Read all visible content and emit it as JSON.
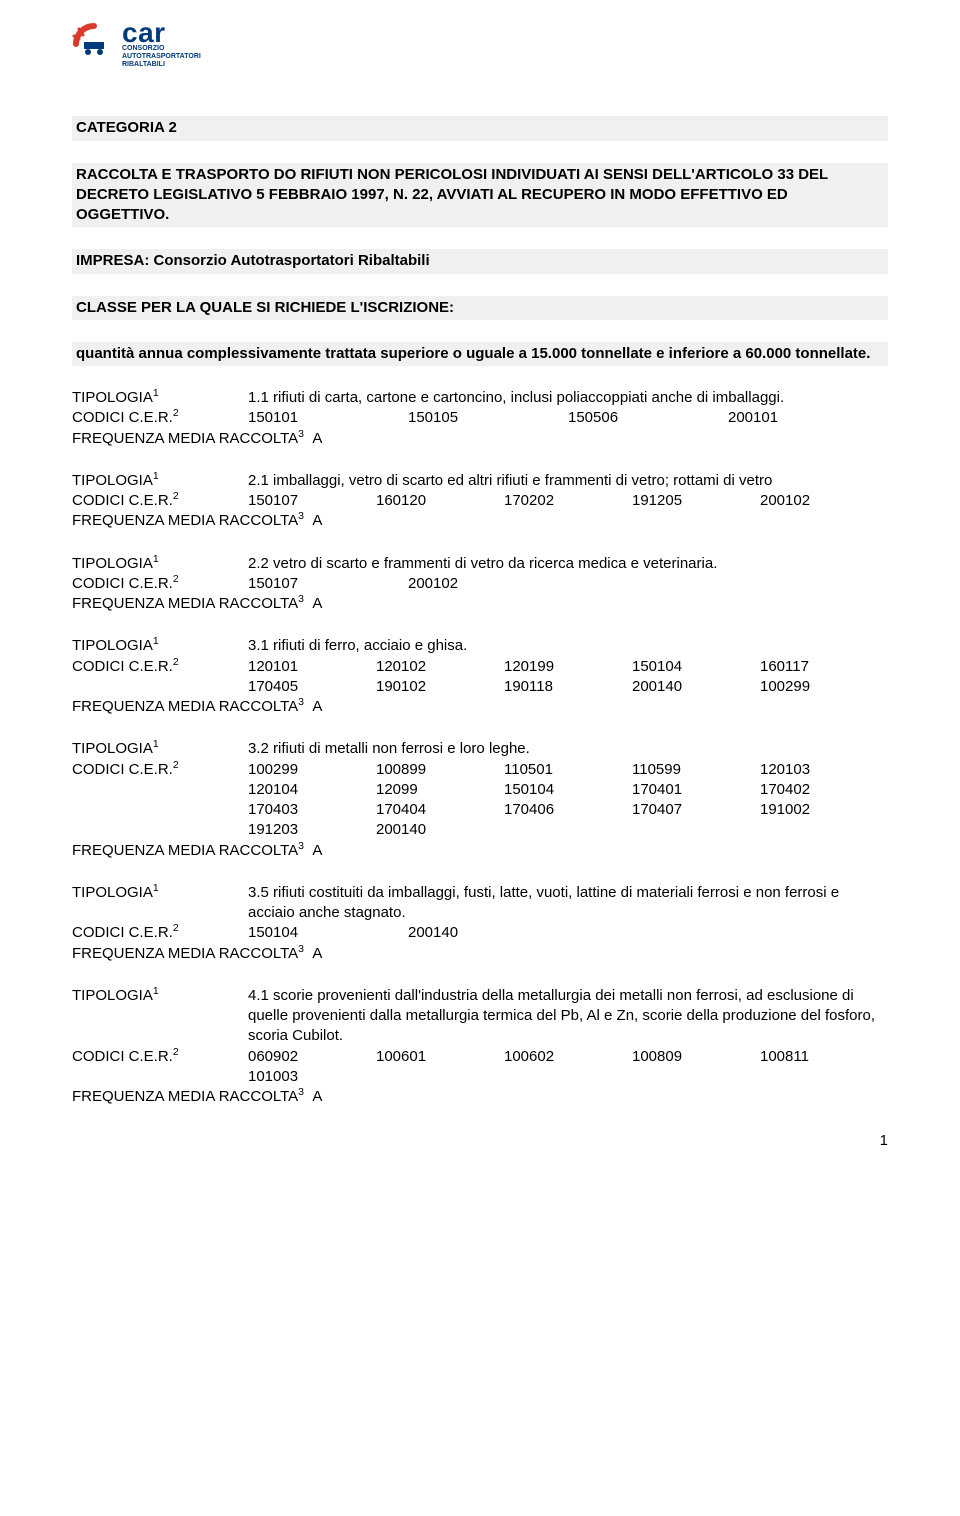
{
  "logo": {
    "brand": "car",
    "line1": "CONSORZIO",
    "line2": "AUTOTRASPORTATORI",
    "line3": "RIBALTABILI",
    "arc_color": "#d83a2e",
    "text_color": "#003a7a"
  },
  "header": {
    "categoria": "CATEGORIA 2",
    "desc": "RACCOLTA E TRASPORTO DO RIFIUTI NON PERICOLOSI INDIVIDUATI AI SENSI DELL'ARTICOLO 33 DEL DECRETO LEGISLATIVO 5 FEBBRAIO 1997, N. 22, AVVIATI AL RECUPERO IN MODO EFFETTIVO ED OGGETTIVO.",
    "impresa_label": "IMPRESA:",
    "impresa_value": "Consorzio Autotrasportatori Ribaltabili",
    "classe": "CLASSE PER LA QUALE SI RICHIEDE L'ISCRIZIONE:",
    "quantita": "quantità annua complessivamente trattata superiore o uguale a 15.000 tonnellate e inferiore a 60.000 tonnellate."
  },
  "labels": {
    "tipologia": "TIPOLOGIA",
    "codici": "CODICI C.E.R.",
    "freq": "FREQUENZA MEDIA RACCOLTA",
    "freq_val": "A"
  },
  "blocks": [
    {
      "desc": "1.1 rifiuti di carta, cartone e cartoncino, inclusi poliaccoppiati anche di imballaggi.",
      "codes": [
        "150101",
        "150105",
        "150506",
        "200101"
      ]
    },
    {
      "desc": "2.1 imballaggi, vetro di scarto ed altri rifiuti e frammenti di vetro; rottami di vetro",
      "codes": [
        "150107",
        "160120",
        "170202",
        "191205",
        "200102"
      ]
    },
    {
      "desc": "2.2 vetro di scarto e frammenti di vetro da ricerca medica e veterinaria.",
      "codes": [
        "150107",
        "200102"
      ]
    },
    {
      "desc": "3.1 rifiuti di ferro, acciaio e ghisa.",
      "codes": [
        "120101",
        "120102",
        "120199",
        "150104",
        "160117",
        "170405",
        "190102",
        "190118",
        "200140",
        "100299"
      ]
    },
    {
      "desc": "3.2 rifiuti di metalli non ferrosi e loro leghe.",
      "codes": [
        "100299",
        "100899",
        "110501",
        "110599",
        "120103",
        "120104",
        "12099",
        "150104",
        "170401",
        "170402",
        "170403",
        "170404",
        "170406",
        "170407",
        "191002",
        "191203",
        "200140"
      ]
    },
    {
      "desc": "3.5 rifiuti costituiti da imballaggi, fusti, latte, vuoti, lattine di materiali ferrosi e non ferrosi e acciaio anche stagnato.",
      "codes": [
        "150104",
        "200140"
      ]
    },
    {
      "desc": "4.1 scorie provenienti dall'industria della metallurgia dei metalli non ferrosi, ad esclusione di quelle provenienti dalla metallurgia termica del Pb, Al e Zn, scorie della produzione del fosforo, scoria Cubilot.",
      "codes": [
        "060902",
        "100601",
        "100602",
        "100809",
        "100811",
        "101003"
      ]
    }
  ],
  "page_number": "1",
  "colors": {
    "band_bg": "#f0f0f0",
    "text": "#000000",
    "page_bg": "#ffffff"
  }
}
